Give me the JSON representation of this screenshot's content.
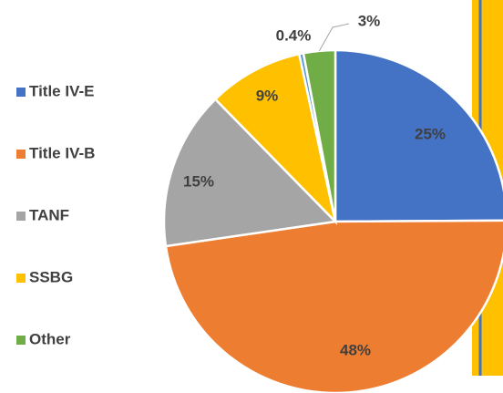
{
  "chart_data": {
    "type": "pie",
    "categories": [
      "Title IV-E",
      "Title IV-B",
      "TANF",
      "SSBG",
      null,
      "Other"
    ],
    "values": [
      25,
      48,
      15,
      9,
      0.4,
      3
    ],
    "value_labels": [
      "25%",
      "48%",
      "15%",
      "9%",
      "0.4%",
      "3%"
    ],
    "colors": [
      "#4472c4",
      "#ed7d31",
      "#a5a5a5",
      "#ffc000",
      "#5b9bd5",
      "#70ad47"
    ],
    "legend": "left"
  }
}
